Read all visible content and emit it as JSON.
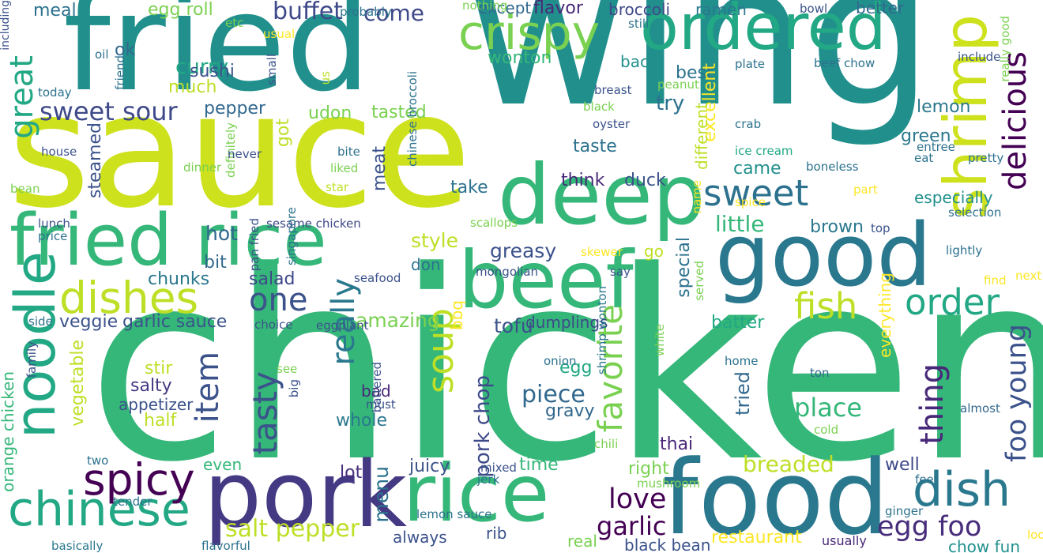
{
  "words": [
    {
      "text": "chicken",
      "color": "#35b779",
      "vertical": false
    },
    {
      "text": "wing",
      "color": "#21908d",
      "vertical": false
    },
    {
      "text": "sauce",
      "color": "#cde11d",
      "vertical": false
    },
    {
      "text": "fried",
      "color": "#21908d",
      "vertical": false
    },
    {
      "text": "food",
      "color": "#2a788e",
      "vertical": false
    },
    {
      "text": "pork",
      "color": "#443983",
      "vertical": false
    },
    {
      "text": "rice",
      "color": "#35b779",
      "vertical": false
    },
    {
      "text": "good",
      "color": "#2a788e",
      "vertical": false
    },
    {
      "text": "deep",
      "color": "#35b779",
      "vertical": false
    },
    {
      "text": "fried rice",
      "color": "#35b779",
      "vertical": false
    },
    {
      "text": "beef",
      "color": "#35b779",
      "vertical": false
    },
    {
      "text": "ordered",
      "color": "#22a884",
      "vertical": false
    },
    {
      "text": "shrimp",
      "color": "#cde11d",
      "vertical": true
    },
    {
      "text": "noodle",
      "color": "#22a884",
      "vertical": true
    },
    {
      "text": "chinese",
      "color": "#22a884",
      "vertical": false
    },
    {
      "text": "crispy",
      "color": "#7ad151",
      "vertical": false
    },
    {
      "text": "dish",
      "color": "#2a788e",
      "vertical": false
    },
    {
      "text": "dishes",
      "color": "#bddf26",
      "vertical": false
    },
    {
      "text": "spicy",
      "color": "#440154",
      "vertical": false
    },
    {
      "text": "delicious",
      "color": "#440154",
      "vertical": true
    },
    {
      "text": "soup",
      "color": "#bddf26",
      "vertical": true
    },
    {
      "text": "favorite",
      "color": "#7ad151",
      "vertical": true
    },
    {
      "text": "sweet",
      "color": "#2c728e",
      "vertical": false
    },
    {
      "text": "fish",
      "color": "#bddf26",
      "vertical": false
    },
    {
      "text": "order",
      "color": "#22a884",
      "vertical": false
    },
    {
      "text": "thing",
      "color": "#482878",
      "vertical": true
    },
    {
      "text": "tasty",
      "color": "#3b528b",
      "vertical": true
    },
    {
      "text": "really",
      "color": "#2a788e",
      "vertical": true
    },
    {
      "text": "item",
      "color": "#3b528b",
      "vertical": true
    },
    {
      "text": "foo young",
      "color": "#3b528b",
      "vertical": true
    },
    {
      "text": "great",
      "color": "#22a884",
      "vertical": true
    },
    {
      "text": "one",
      "color": "#3b528b",
      "vertical": false
    },
    {
      "text": "love",
      "color": "#440154",
      "vertical": false
    },
    {
      "text": "egg foo",
      "color": "#472d7b",
      "vertical": false
    },
    {
      "text": "sweet sour",
      "color": "#3e4989",
      "vertical": false
    },
    {
      "text": "garlic",
      "color": "#440154",
      "vertical": false
    },
    {
      "text": "place",
      "color": "#35b779",
      "vertical": false
    },
    {
      "text": "salt pepper",
      "color": "#bddf26",
      "vertical": false
    },
    {
      "text": "piece",
      "color": "#31688e",
      "vertical": false
    },
    {
      "text": "buffet",
      "color": "#3e4989",
      "vertical": false
    },
    {
      "text": "come",
      "color": "#3e4989",
      "vertical": false
    },
    {
      "text": "little",
      "color": "#35b779",
      "vertical": false
    },
    {
      "text": "hot",
      "color": "#31688e",
      "vertical": false
    },
    {
      "text": "style",
      "color": "#bddf26",
      "vertical": false
    },
    {
      "text": "breaded",
      "color": "#bddf26",
      "vertical": false
    },
    {
      "text": "greasy",
      "color": "#3b528b",
      "vertical": false
    },
    {
      "text": "pork chop",
      "color": "#3e4989",
      "vertical": true
    },
    {
      "text": "tofu",
      "color": "#3b528b",
      "vertical": false
    },
    {
      "text": "curry",
      "color": "#22a884",
      "vertical": false
    },
    {
      "text": "amazing",
      "color": "#7ad151",
      "vertical": false
    },
    {
      "text": "menu",
      "color": "#2c728e",
      "vertical": true
    },
    {
      "text": "got",
      "color": "#bddf26",
      "vertical": true
    },
    {
      "text": "egg roll",
      "color": "#7ad151",
      "vertical": false
    },
    {
      "text": "meal",
      "color": "#2c728e",
      "vertical": false
    },
    {
      "text": "tried",
      "color": "#31688e",
      "vertical": true
    },
    {
      "text": "try",
      "color": "#2c728e",
      "vertical": false
    },
    {
      "text": "best",
      "color": "#2c728e",
      "vertical": false
    },
    {
      "text": "taste",
      "color": "#2c728e",
      "vertical": false
    },
    {
      "text": "special",
      "color": "#2c728e",
      "vertical": true
    },
    {
      "text": "wonton",
      "color": "#35b779",
      "vertical": false
    },
    {
      "text": "sushi",
      "color": "#3b528b",
      "vertical": false
    },
    {
      "text": "much",
      "color": "#bddf26",
      "vertical": false
    },
    {
      "text": "ok",
      "color": "#31688e",
      "vertical": false
    },
    {
      "text": "juicy",
      "color": "#3b528b",
      "vertical": false
    },
    {
      "text": "time",
      "color": "#35b779",
      "vertical": false
    },
    {
      "text": "salty",
      "color": "#443983",
      "vertical": false
    },
    {
      "text": "whole",
      "color": "#2a788e",
      "vertical": false
    },
    {
      "text": "stir",
      "color": "#bddf26",
      "vertical": false
    },
    {
      "text": "well",
      "color": "#3e4989",
      "vertical": false
    },
    {
      "text": "lemon",
      "color": "#2a788e",
      "vertical": false
    },
    {
      "text": "brown",
      "color": "#2a788e",
      "vertical": false
    },
    {
      "text": "green",
      "color": "#2a788e",
      "vertical": false
    },
    {
      "text": "flavor",
      "color": "#482878",
      "vertical": false
    },
    {
      "text": "steamed",
      "color": "#3b528b",
      "vertical": true
    },
    {
      "text": "veggie",
      "color": "#3b528b",
      "vertical": false
    },
    {
      "text": "pepper",
      "color": "#31688e",
      "vertical": false
    },
    {
      "text": "bit",
      "color": "#31688e",
      "vertical": false
    },
    {
      "text": "meat",
      "color": "#3b528b",
      "vertical": true
    },
    {
      "text": "restaurant",
      "color": "#fde725",
      "vertical": false
    },
    {
      "text": "udon",
      "color": "#7ad151",
      "vertical": false
    },
    {
      "text": "tasted",
      "color": "#7ad151",
      "vertical": false
    },
    {
      "text": "thai",
      "color": "#482878",
      "vertical": false
    },
    {
      "text": "right",
      "color": "#7ad151",
      "vertical": false
    },
    {
      "text": "garlic sauce",
      "color": "#3b528b",
      "vertical": false
    },
    {
      "text": "salad",
      "color": "#3e4989",
      "vertical": false
    },
    {
      "text": "excellent",
      "color": "#fde725",
      "vertical": true
    },
    {
      "text": "came",
      "color": "#21908d",
      "vertical": false
    },
    {
      "text": "take",
      "color": "#2c728e",
      "vertical": false
    },
    {
      "text": "batter",
      "color": "#22a884",
      "vertical": false
    },
    {
      "text": "lot",
      "color": "#472d7b",
      "vertical": false
    },
    {
      "text": "think",
      "color": "#482878",
      "vertical": false
    },
    {
      "text": "duck",
      "color": "#3b528b",
      "vertical": false
    },
    {
      "text": "chunks",
      "color": "#2a788e",
      "vertical": false
    },
    {
      "text": "don",
      "color": "#2c728e",
      "vertical": false
    },
    {
      "text": "broccoli",
      "color": "#3e4989",
      "vertical": false
    },
    {
      "text": "ramen",
      "color": "#2a788e",
      "vertical": false
    },
    {
      "text": "back",
      "color": "#21908d",
      "vertical": false
    },
    {
      "text": "better",
      "color": "#31688e",
      "vertical": false
    },
    {
      "text": "half",
      "color": "#bddf26",
      "vertical": false
    },
    {
      "text": "gravy",
      "color": "#31688e",
      "vertical": false
    },
    {
      "text": "egg",
      "color": "#22a884",
      "vertical": false
    },
    {
      "text": "vegetable",
      "color": "#bddf26",
      "vertical": true
    },
    {
      "text": "orange chicken",
      "color": "#35b779",
      "vertical": true
    },
    {
      "text": "even",
      "color": "#35b779",
      "vertical": false
    },
    {
      "text": "always",
      "color": "#3b528b",
      "vertical": false
    },
    {
      "text": "rib",
      "color": "#3b528b",
      "vertical": false
    },
    {
      "text": "real",
      "color": "#7ad151",
      "vertical": false
    },
    {
      "text": "bad",
      "color": "#482878",
      "vertical": false
    },
    {
      "text": "appetizer",
      "color": "#3b528b",
      "vertical": false
    },
    {
      "text": "except",
      "color": "#31688e",
      "vertical": false
    },
    {
      "text": "different",
      "color": "#bddf26",
      "vertical": true
    },
    {
      "text": "bbq",
      "color": "#fde725",
      "vertical": true
    },
    {
      "text": "go",
      "color": "#bddf26",
      "vertical": false
    },
    {
      "text": "dumplings",
      "color": "#3e4989",
      "vertical": false
    },
    {
      "text": "everything",
      "color": "#fde725",
      "vertical": true
    },
    {
      "text": "especially",
      "color": "#21908d",
      "vertical": false
    },
    {
      "text": "black bean",
      "color": "#3b528b",
      "vertical": false
    },
    {
      "text": "chow fun",
      "color": "#21908d",
      "vertical": false
    },
    {
      "text": "usually",
      "color": "#482878",
      "vertical": false
    },
    {
      "text": "sesame chicken",
      "color": "#3e4989",
      "vertical": false
    },
    {
      "text": "lunch",
      "color": "#3b528b",
      "vertical": false
    },
    {
      "text": "today",
      "color": "#2c728e",
      "vertical": false
    },
    {
      "text": "side",
      "color": "#2c728e",
      "vertical": false
    },
    {
      "text": "two",
      "color": "#2c728e",
      "vertical": false
    },
    {
      "text": "tender",
      "color": "#2c728e",
      "vertical": false
    },
    {
      "text": "basically",
      "color": "#2a788e",
      "vertical": false
    },
    {
      "text": "flavorful",
      "color": "#2c728e",
      "vertical": false
    },
    {
      "text": "lemon sauce",
      "color": "#2c728e",
      "vertical": false
    },
    {
      "text": "mixed",
      "color": "#3b528b",
      "vertical": false
    },
    {
      "text": "jerk",
      "color": "#2c728e",
      "vertical": false
    },
    {
      "text": "mushroom",
      "color": "#7ad151",
      "vertical": false
    },
    {
      "text": "feet",
      "color": "#2c728e",
      "vertical": false
    },
    {
      "text": "ginger",
      "color": "#2c728e",
      "vertical": false
    },
    {
      "text": "look",
      "color": "#fde725",
      "vertical": false
    },
    {
      "text": "ton",
      "color": "#31688e",
      "vertical": false
    },
    {
      "text": "cold",
      "color": "#7ad151",
      "vertical": false
    },
    {
      "text": "chili",
      "color": "#7ad151",
      "vertical": false
    },
    {
      "text": "home",
      "color": "#2c728e",
      "vertical": false
    },
    {
      "text": "almost",
      "color": "#31688e",
      "vertical": false
    },
    {
      "text": "white",
      "color": "#7ad151",
      "vertical": true
    },
    {
      "text": "served",
      "color": "#7ad151",
      "vertical": true
    },
    {
      "text": "shrimp wonton",
      "color": "#2a788e",
      "vertical": true
    },
    {
      "text": "say",
      "color": "#3b528b",
      "vertical": false
    },
    {
      "text": "mongolian",
      "color": "#3b528b",
      "vertical": false
    },
    {
      "text": "seafood",
      "color": "#3b528b",
      "vertical": false
    },
    {
      "text": "scallops",
      "color": "#7ad151",
      "vertical": false
    },
    {
      "text": "skewer",
      "color": "#fde725",
      "vertical": false
    },
    {
      "text": "top",
      "color": "#3b528b",
      "vertical": false
    },
    {
      "text": "lightly",
      "color": "#2c728e",
      "vertical": false
    },
    {
      "text": "selection",
      "color": "#2c728e",
      "vertical": false
    },
    {
      "text": "part",
      "color": "#fde725",
      "vertical": false
    },
    {
      "text": "next",
      "color": "#fde725",
      "vertical": false
    },
    {
      "text": "find",
      "color": "#fde725",
      "vertical": false
    },
    {
      "text": "name",
      "color": "#fde725",
      "vertical": true
    },
    {
      "text": "spice",
      "color": "#fde725",
      "vertical": false
    },
    {
      "text": "boneless",
      "color": "#2c728e",
      "vertical": false
    },
    {
      "text": "eat",
      "color": "#2c728e",
      "vertical": false
    },
    {
      "text": "pretty",
      "color": "#2c728e",
      "vertical": false
    },
    {
      "text": "entree",
      "color": "#2c728e",
      "vertical": false
    },
    {
      "text": "ice cream",
      "color": "#22a884",
      "vertical": false
    },
    {
      "text": "crab",
      "color": "#2c728e",
      "vertical": false
    },
    {
      "text": "oyster",
      "color": "#3b528b",
      "vertical": false
    },
    {
      "text": "peanut",
      "color": "#7ad151",
      "vertical": false
    },
    {
      "text": "breast",
      "color": "#3b528b",
      "vertical": false
    },
    {
      "text": "black",
      "color": "#7ad151",
      "vertical": false
    },
    {
      "text": "plate",
      "color": "#2c728e",
      "vertical": false
    },
    {
      "text": "beef chow",
      "color": "#2c728e",
      "vertical": false
    },
    {
      "text": "include",
      "color": "#3b528b",
      "vertical": false
    },
    {
      "text": "really good",
      "color": "#7ad151",
      "vertical": true
    },
    {
      "text": "still",
      "color": "#2c728e",
      "vertical": false
    },
    {
      "text": "bowl",
      "color": "#3b528b",
      "vertical": false
    },
    {
      "text": "nothing",
      "color": "#7ad151",
      "vertical": false
    },
    {
      "text": "chinese broccoli",
      "color": "#2c728e",
      "vertical": true
    },
    {
      "text": "us",
      "color": "#bddf26",
      "vertical": true
    },
    {
      "text": "probably",
      "color": "#2c728e",
      "vertical": false
    },
    {
      "text": "small",
      "color": "#3b528b",
      "vertical": true
    },
    {
      "text": "usual",
      "color": "#fde725",
      "vertical": false
    },
    {
      "text": "etc",
      "color": "#7ad151",
      "vertical": false
    },
    {
      "text": "oil",
      "color": "#2c728e",
      "vertical": false
    },
    {
      "text": "friend",
      "color": "#2c728e",
      "vertical": true
    },
    {
      "text": "definitely",
      "color": "#7ad151",
      "vertical": true
    },
    {
      "text": "never",
      "color": "#3b528b",
      "vertical": false
    },
    {
      "text": "bite",
      "color": "#2c728e",
      "vertical": false
    },
    {
      "text": "liked",
      "color": "#7ad151",
      "vertical": false
    },
    {
      "text": "star",
      "color": "#bddf26",
      "vertical": false
    },
    {
      "text": "dinner",
      "color": "#7ad151",
      "vertical": false
    },
    {
      "text": "singapore",
      "color": "#2c728e",
      "vertical": true
    },
    {
      "text": "pan fried",
      "color": "#3b528b",
      "vertical": true
    },
    {
      "text": "house",
      "color": "#3b528b",
      "vertical": false
    },
    {
      "text": "bean",
      "color": "#7ad151",
      "vertical": false
    },
    {
      "text": "price",
      "color": "#2c728e",
      "vertical": false
    },
    {
      "text": "family",
      "color": "#3b528b",
      "vertical": true
    },
    {
      "text": "see",
      "color": "#7ad151",
      "vertical": false
    },
    {
      "text": "choice",
      "color": "#3b528b",
      "vertical": false
    },
    {
      "text": "eggplant",
      "color": "#3b528b",
      "vertical": false
    },
    {
      "text": "battered",
      "color": "#3b528b",
      "vertical": true
    },
    {
      "text": "must",
      "color": "#3b528b",
      "vertical": false
    },
    {
      "text": "onion",
      "color": "#2c728e",
      "vertical": false
    },
    {
      "text": "big",
      "color": "#3b528b",
      "vertical": true
    },
    {
      "text": "including",
      "color": "#3b528b",
      "vertical": true
    }
  ]
}
